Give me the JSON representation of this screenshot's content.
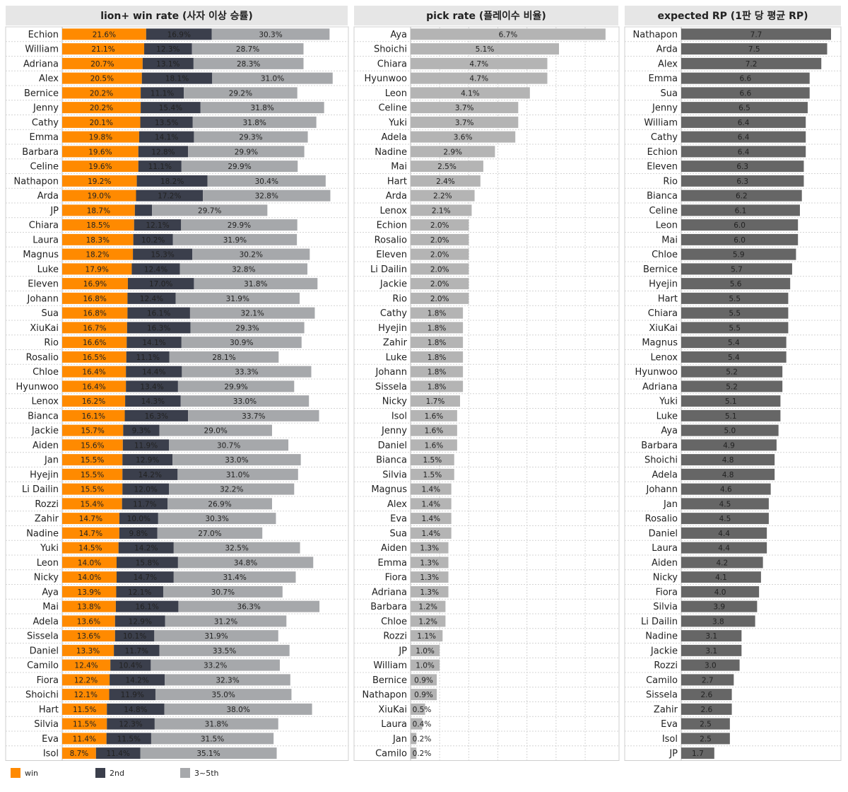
{
  "panels": {
    "win": {
      "title": "lion+ win rate (사자 이상 승률)"
    },
    "pick": {
      "title": "pick rate (플레이수 비율)"
    },
    "rp": {
      "title": "expected RP (1판 당 평균 RP)"
    }
  },
  "legend": {
    "win": "win",
    "second": "2nd",
    "third_fifth": "3~5th"
  },
  "colors": {
    "win": "#ff8a00",
    "second": "#3b3f4c",
    "third_fifth": "#a6a8ab",
    "pick": "#b4b4b4",
    "rp": "#666666"
  },
  "chart_data": [
    {
      "type": "bar",
      "stacked": true,
      "orientation": "horizontal",
      "title": "lion+ win rate (사자 이상 승률)",
      "xlim": [
        0,
        100
      ],
      "categories": [
        "Echion",
        "William",
        "Adriana",
        "Alex",
        "Bernice",
        "Jenny",
        "Cathy",
        "Emma",
        "Barbara",
        "Celine",
        "Nathapon",
        "Arda",
        "JP",
        "Chiara",
        "Laura",
        "Magnus",
        "Luke",
        "Eleven",
        "Johann",
        "Sua",
        "XiuKai",
        "Rio",
        "Rosalio",
        "Chloe",
        "Hyunwoo",
        "Lenox",
        "Bianca",
        "Jackie",
        "Aiden",
        "Jan",
        "Hyejin",
        "Li Dailin",
        "Rozzi",
        "Zahir",
        "Nadine",
        "Yuki",
        "Leon",
        "Nicky",
        "Aya",
        "Mai",
        "Adela",
        "Sissela",
        "Daniel",
        "Camilo",
        "Fiora",
        "Shoichi",
        "Hart",
        "Silvia",
        "Eva",
        "Isol"
      ],
      "series": [
        {
          "name": "win",
          "values": [
            21.6,
            21.1,
            20.7,
            20.5,
            20.2,
            20.2,
            20.1,
            19.8,
            19.6,
            19.6,
            19.2,
            19.0,
            18.7,
            18.5,
            18.3,
            18.2,
            17.9,
            16.9,
            16.8,
            16.8,
            16.7,
            16.6,
            16.5,
            16.4,
            16.4,
            16.2,
            16.1,
            15.7,
            15.6,
            15.5,
            15.5,
            15.5,
            15.4,
            14.7,
            14.7,
            14.5,
            14.0,
            14.0,
            13.9,
            13.8,
            13.6,
            13.6,
            13.3,
            12.4,
            12.2,
            12.1,
            11.5,
            11.5,
            11.4,
            8.7
          ]
        },
        {
          "name": "2nd",
          "values": [
            16.9,
            12.3,
            13.1,
            18.1,
            11.1,
            15.4,
            13.5,
            14.1,
            12.8,
            11.1,
            18.2,
            17.2,
            4.4,
            12.1,
            10.2,
            15.3,
            12.4,
            17.0,
            12.4,
            16.1,
            16.3,
            14.1,
            11.1,
            14.4,
            13.4,
            14.3,
            16.3,
            9.3,
            11.9,
            12.9,
            14.2,
            12.0,
            11.7,
            10.0,
            9.8,
            14.2,
            15.8,
            14.7,
            12.1,
            16.1,
            12.9,
            10.1,
            11.7,
            10.4,
            14.2,
            11.9,
            14.8,
            12.3,
            11.5,
            11.4
          ]
        },
        {
          "name": "3~5th",
          "values": [
            30.3,
            28.7,
            28.3,
            31.0,
            29.2,
            31.8,
            31.8,
            29.3,
            29.9,
            29.9,
            30.4,
            32.8,
            29.7,
            29.9,
            31.9,
            30.2,
            32.8,
            31.8,
            31.9,
            32.1,
            29.3,
            30.9,
            28.1,
            33.3,
            29.9,
            33.0,
            33.7,
            29.0,
            30.7,
            33.0,
            31.0,
            32.2,
            26.9,
            30.3,
            27.0,
            32.5,
            34.8,
            31.4,
            30.7,
            36.3,
            31.2,
            31.9,
            33.5,
            33.2,
            32.3,
            35.0,
            38.0,
            31.8,
            31.5,
            35.1
          ]
        }
      ],
      "labels_hidden": {
        "2nd": [
          "JP"
        ]
      }
    },
    {
      "type": "bar",
      "orientation": "horizontal",
      "title": "pick rate (플레이수 비율)",
      "xlim": [
        0,
        6.8
      ],
      "categories": [
        "Aya",
        "Shoichi",
        "Chiara",
        "Hyunwoo",
        "Leon",
        "Celine",
        "Yuki",
        "Adela",
        "Nadine",
        "Mai",
        "Hart",
        "Arda",
        "Lenox",
        "Echion",
        "Rosalio",
        "Eleven",
        "Li Dailin",
        "Jackie",
        "Rio",
        "Cathy",
        "Hyejin",
        "Zahir",
        "Luke",
        "Johann",
        "Sissela",
        "Nicky",
        "Isol",
        "Jenny",
        "Daniel",
        "Bianca",
        "Silvia",
        "Magnus",
        "Alex",
        "Eva",
        "Sua",
        "Aiden",
        "Emma",
        "Fiora",
        "Adriana",
        "Barbara",
        "Chloe",
        "Rozzi",
        "JP",
        "William",
        "Bernice",
        "Nathapon",
        "XiuKai",
        "Laura",
        "Jan",
        "Camilo"
      ],
      "values": [
        6.7,
        5.1,
        4.7,
        4.7,
        4.1,
        3.7,
        3.7,
        3.6,
        2.9,
        2.5,
        2.4,
        2.2,
        2.1,
        2.0,
        2.0,
        2.0,
        2.0,
        2.0,
        2.0,
        1.8,
        1.8,
        1.8,
        1.8,
        1.8,
        1.8,
        1.7,
        1.6,
        1.6,
        1.6,
        1.5,
        1.5,
        1.4,
        1.4,
        1.4,
        1.4,
        1.3,
        1.3,
        1.3,
        1.3,
        1.2,
        1.2,
        1.1,
        1.0,
        1.0,
        0.9,
        0.9,
        0.5,
        0.4,
        0.2,
        0.2
      ],
      "value_suffix": "%",
      "grid": true
    },
    {
      "type": "bar",
      "orientation": "horizontal",
      "title": "expected RP (1판 당 평균 RP)",
      "xlim": [
        0,
        7.7
      ],
      "categories": [
        "Nathapon",
        "Arda",
        "Alex",
        "Emma",
        "Sua",
        "Jenny",
        "William",
        "Cathy",
        "Echion",
        "Eleven",
        "Rio",
        "Bianca",
        "Celine",
        "Leon",
        "Mai",
        "Chloe",
        "Bernice",
        "Hyejin",
        "Hart",
        "Chiara",
        "XiuKai",
        "Magnus",
        "Lenox",
        "Hyunwoo",
        "Adriana",
        "Yuki",
        "Luke",
        "Aya",
        "Barbara",
        "Shoichi",
        "Adela",
        "Johann",
        "Jan",
        "Rosalio",
        "Daniel",
        "Laura",
        "Aiden",
        "Nicky",
        "Fiora",
        "Silvia",
        "Li Dailin",
        "Nadine",
        "Jackie",
        "Rozzi",
        "Camilo",
        "Sissela",
        "Zahir",
        "Eva",
        "Isol",
        "JP"
      ],
      "values": [
        7.7,
        7.5,
        7.2,
        6.6,
        6.6,
        6.5,
        6.4,
        6.4,
        6.4,
        6.3,
        6.3,
        6.2,
        6.1,
        6.0,
        6.0,
        5.9,
        5.7,
        5.6,
        5.5,
        5.5,
        5.5,
        5.4,
        5.4,
        5.2,
        5.2,
        5.1,
        5.1,
        5.0,
        4.9,
        4.8,
        4.8,
        4.6,
        4.5,
        4.5,
        4.4,
        4.4,
        4.2,
        4.1,
        4.0,
        3.9,
        3.8,
        3.1,
        3.1,
        3.0,
        2.7,
        2.6,
        2.6,
        2.5,
        2.5,
        1.7
      ],
      "grid": false
    }
  ]
}
